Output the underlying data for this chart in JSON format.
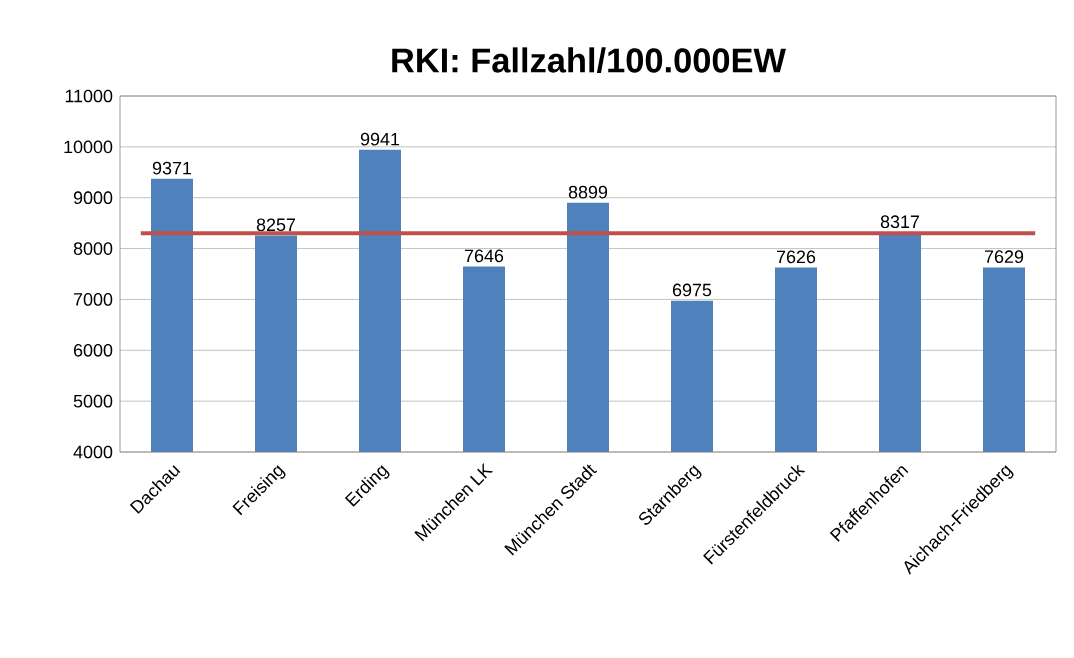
{
  "chart_data": {
    "type": "bar",
    "title": "RKI: Fallzahl/100.000EW",
    "categories": [
      "Dachau",
      "Freising",
      "Erding",
      "München LK",
      "München Stadt",
      "Starnberg",
      "Fürstenfeldbruck",
      "Pfaffenhofen",
      "Aichach-Friedberg"
    ],
    "values": [
      9371,
      8257,
      9941,
      7646,
      8899,
      6975,
      7626,
      8317,
      7629
    ],
    "value_labels": [
      "9371",
      "8257",
      "9941",
      "7646",
      "8899",
      "6975",
      "7626",
      "8317",
      "7629"
    ],
    "color": "#4f81bd",
    "ylim": [
      4000,
      11000
    ],
    "yticks": [
      4000,
      5000,
      6000,
      7000,
      8000,
      9000,
      10000,
      11000
    ],
    "grid": "y",
    "ref_lines": [
      {
        "axis": "y",
        "value": 8300,
        "color": "#c0504d"
      }
    ]
  }
}
